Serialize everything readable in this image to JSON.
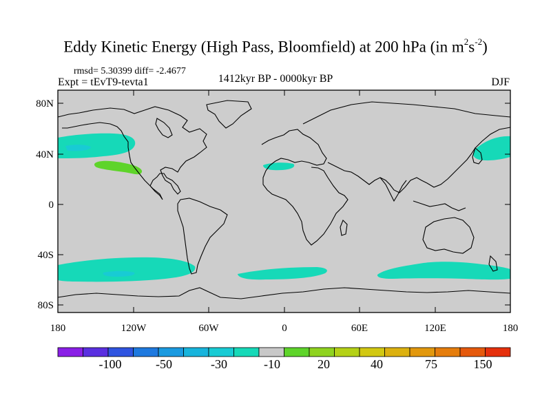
{
  "title_main": "Eddy Kinetic Energy (High Pass, Bloomfield) at 200 hPa (in m",
  "title_sup1": "2",
  "title_s": "s",
  "title_sup2": "-2",
  "title_end": ")",
  "stats": "rmsd= 5.30399 diff= -2.4677",
  "experiment": "Expt = tEvT9-tevta1",
  "period": "1412kyr BP - 0000kyr BP",
  "season": "DJF",
  "lat_labels": [
    "80N",
    "40N",
    "0",
    "40S",
    "80S"
  ],
  "lon_labels": [
    "180",
    "120W",
    "60W",
    "0",
    "60E",
    "120E",
    "180"
  ],
  "colorbar": {
    "colors": [
      "#8a1fe6",
      "#5a2fe0",
      "#2f54e0",
      "#1e79df",
      "#1a9ae0",
      "#17b4dc",
      "#18cbd4",
      "#16d9b8",
      "#c8c8c8",
      "#5ed42a",
      "#8fd31f",
      "#b4d116",
      "#d2c812",
      "#dcb10f",
      "#e2980d",
      "#e57d0c",
      "#e5590c",
      "#e5300c"
    ],
    "labels": [
      "-100",
      "-50",
      "-30",
      "-10",
      "20",
      "40",
      "75",
      "150"
    ]
  },
  "map": {
    "background": "#cdcdcd",
    "coast": "#000000",
    "positive_color": "#5ed42a",
    "negative_color": "#16d9b8",
    "negative_dark": "#18cbd4"
  }
}
